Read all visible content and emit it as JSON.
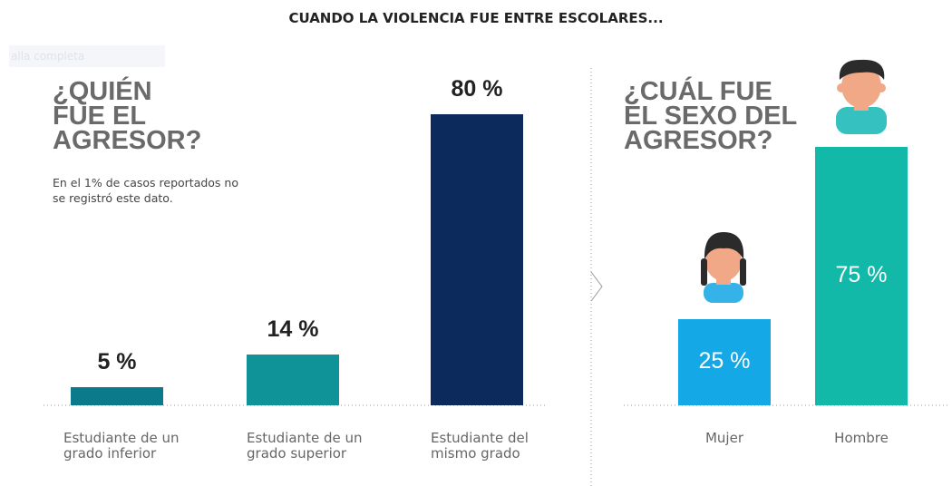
{
  "title": "CUANDO LA VIOLENCIA FUE ENTRE ESCOLARES...",
  "watermark": "alla completa",
  "chart_data": [
    {
      "type": "bar",
      "title": "¿QUIÉN FUE EL AGRESOR?",
      "note": "En el 1% de casos reportados no se registró este dato.",
      "categories": [
        "Estudiante de un grado inferior",
        "Estudiante de un grado superior",
        "Estudiante del mismo grado"
      ],
      "values": [
        5,
        14,
        80
      ],
      "value_labels": [
        "5 %",
        "14 %",
        "80 %"
      ],
      "colors": [
        "#0b7a8b",
        "#0f9298",
        "#0c2a5b"
      ]
    },
    {
      "type": "bar",
      "title": "¿CUÁL FUE EL SEXO DEL AGRESOR?",
      "categories": [
        "Mujer",
        "Hombre"
      ],
      "values": [
        25,
        75
      ],
      "value_labels": [
        "25 %",
        "75 %"
      ],
      "colors": [
        "#14a9e6",
        "#12b9a9"
      ]
    }
  ]
}
